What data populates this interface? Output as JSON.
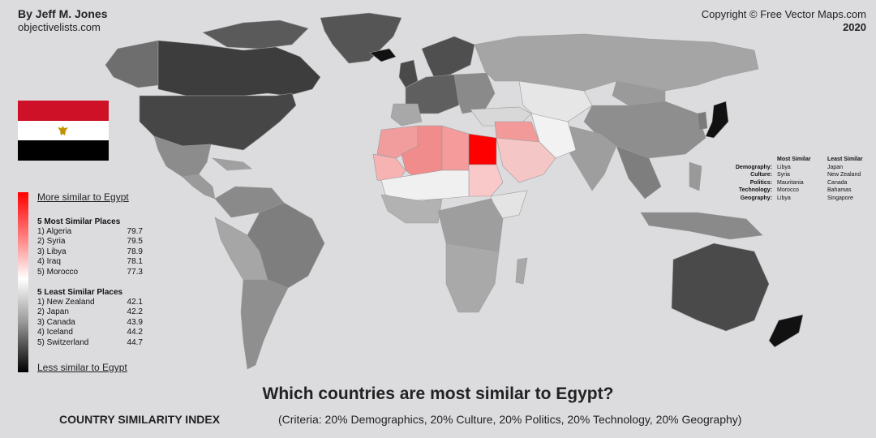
{
  "header": {
    "author": "By Jeff M. Jones",
    "site": "objectivelists.com",
    "copyright": "Copyright © Free Vector Maps.com",
    "year": "2020"
  },
  "legend": {
    "more_label": "More similar to Egypt",
    "less_label": "Less similar to Egypt",
    "most_title": "5 Most Similar Places",
    "most": [
      {
        "name": "1) Algeria",
        "score": "79.7"
      },
      {
        "name": "2) Syria",
        "score": "79.5"
      },
      {
        "name": "3) Libya",
        "score": "78.9"
      },
      {
        "name": "4) Iraq",
        "score": "78.1"
      },
      {
        "name": "5) Morocco",
        "score": "77.3"
      }
    ],
    "least_title": "5 Least Similar Places",
    "least": [
      {
        "name": "1) New Zealand",
        "score": "42.1"
      },
      {
        "name": "2) Japan",
        "score": "42.2"
      },
      {
        "name": "3) Canada",
        "score": "43.9"
      },
      {
        "name": "4) Iceland",
        "score": "44.2"
      },
      {
        "name": "5) Switzerland",
        "score": "44.7"
      }
    ],
    "gradient_colors": [
      "#ff0000",
      "#ffffff",
      "#000000"
    ]
  },
  "criteria_table": {
    "headers": [
      "",
      "Most Similar",
      "Least Similar"
    ],
    "rows": [
      {
        "criterion": "Demography:",
        "most": "Libya",
        "least": "Japan"
      },
      {
        "criterion": "Culture:",
        "most": "Syria",
        "least": "New Zealand"
      },
      {
        "criterion": "Politics:",
        "most": "Mauritania",
        "least": "Canada"
      },
      {
        "criterion": "Technology:",
        "most": "Morocco",
        "least": "Bahamas"
      },
      {
        "criterion": "Geography:",
        "most": "Libya",
        "least": "Singapore"
      }
    ]
  },
  "footer": {
    "title": "Which countries are most similar to Egypt?",
    "index_label": "COUNTRY SIMILARITY INDEX",
    "criteria": "(Criteria: 20% Demographics, 20% Culture, 20% Politics, 20% Technology, 20% Geography)"
  },
  "map": {
    "focus_country": "Egypt",
    "focus_color": "#ff0000",
    "background_color": "#dcdcdf",
    "flag_icon": "egypt-flag-icon"
  }
}
